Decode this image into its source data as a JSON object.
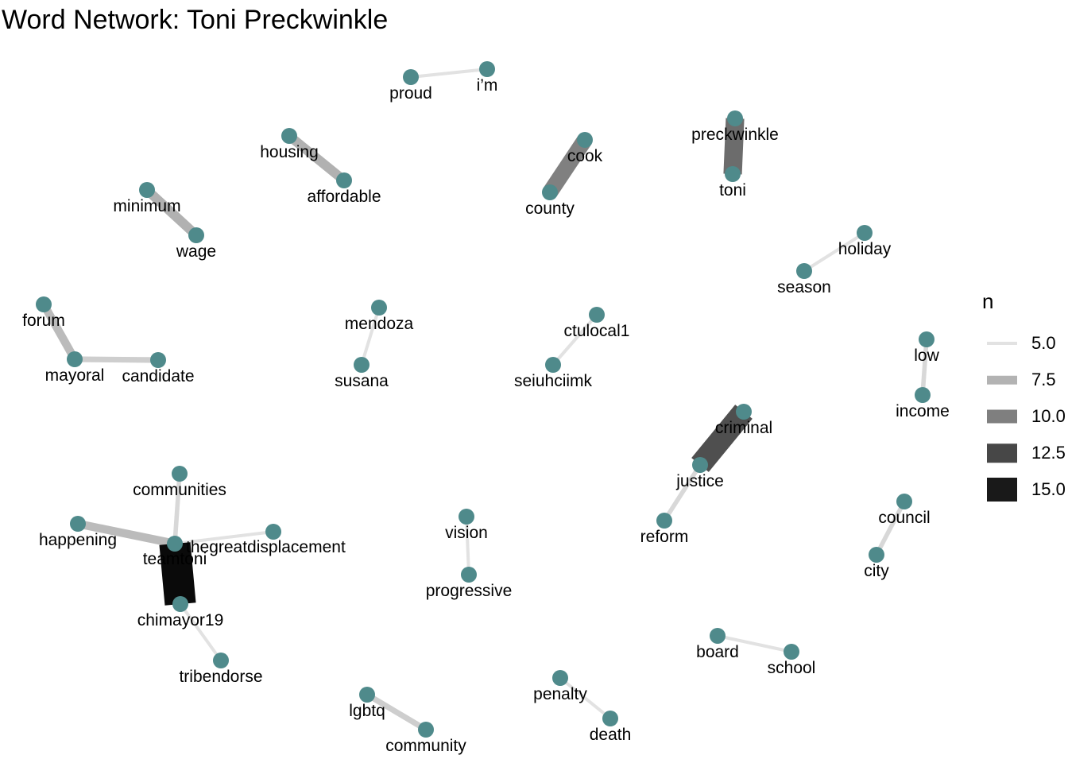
{
  "title": "Word Network: Toni Preckwinkle",
  "colors": {
    "node": "#4f8a8b"
  },
  "legend": {
    "title": "n",
    "items": [
      {
        "label": "5.0",
        "n": 5.0,
        "color": "#e2e2e2"
      },
      {
        "label": "7.5",
        "n": 7.5,
        "color": "#b3b3b3"
      },
      {
        "label": "10.0",
        "n": 10.0,
        "color": "#7f7f7f"
      },
      {
        "label": "12.5",
        "n": 12.5,
        "color": "#474747"
      },
      {
        "label": "15.0",
        "n": 15.0,
        "color": "#191919"
      }
    ]
  },
  "nodes": [
    {
      "id": "proud",
      "label": "proud"
    },
    {
      "id": "im",
      "label": "i’m"
    },
    {
      "id": "housing",
      "label": "housing"
    },
    {
      "id": "affordable",
      "label": "affordable"
    },
    {
      "id": "cook",
      "label": "cook"
    },
    {
      "id": "county",
      "label": "county"
    },
    {
      "id": "preckwinkle",
      "label": "preckwinkle"
    },
    {
      "id": "toni",
      "label": "toni"
    },
    {
      "id": "minimum",
      "label": "minimum"
    },
    {
      "id": "wage",
      "label": "wage"
    },
    {
      "id": "holiday",
      "label": "holiday"
    },
    {
      "id": "season",
      "label": "season"
    },
    {
      "id": "forum",
      "label": "forum"
    },
    {
      "id": "mayoral",
      "label": "mayoral"
    },
    {
      "id": "candidate",
      "label": "candidate"
    },
    {
      "id": "mendoza",
      "label": "mendoza"
    },
    {
      "id": "susana",
      "label": "susana"
    },
    {
      "id": "ctulocal1",
      "label": "ctulocal1"
    },
    {
      "id": "seiuhciimk",
      "label": "seiuhciimk"
    },
    {
      "id": "low",
      "label": "low"
    },
    {
      "id": "income",
      "label": "income"
    },
    {
      "id": "criminal",
      "label": "criminal"
    },
    {
      "id": "justice",
      "label": "justice"
    },
    {
      "id": "reform",
      "label": "reform"
    },
    {
      "id": "communities",
      "label": "communities"
    },
    {
      "id": "happening",
      "label": "happening"
    },
    {
      "id": "teamtoni",
      "label": "teamtoni"
    },
    {
      "id": "thegreatdisplacement",
      "label": "thegreatdisplacement"
    },
    {
      "id": "chimayor19",
      "label": "chimayor19"
    },
    {
      "id": "tribendorse",
      "label": "tribendorse"
    },
    {
      "id": "vision",
      "label": "vision"
    },
    {
      "id": "progressive",
      "label": "progressive"
    },
    {
      "id": "council",
      "label": "council"
    },
    {
      "id": "city",
      "label": "city"
    },
    {
      "id": "board",
      "label": "board"
    },
    {
      "id": "school",
      "label": "school"
    },
    {
      "id": "lgbtq",
      "label": "lgbtq"
    },
    {
      "id": "community",
      "label": "community"
    },
    {
      "id": "penalty",
      "label": "penalty"
    },
    {
      "id": "death",
      "label": "death"
    }
  ],
  "edges": [
    {
      "from": "proud",
      "to": "im",
      "n": 5
    },
    {
      "from": "housing",
      "to": "affordable",
      "n": 7.5
    },
    {
      "from": "cook",
      "to": "county",
      "n": 10
    },
    {
      "from": "toni",
      "to": "preckwinkle",
      "n": 11
    },
    {
      "from": "minimum",
      "to": "wage",
      "n": 7.5
    },
    {
      "from": "holiday",
      "to": "season",
      "n": 5
    },
    {
      "from": "forum",
      "to": "mayoral",
      "n": 7
    },
    {
      "from": "mayoral",
      "to": "candidate",
      "n": 6
    },
    {
      "from": "mendoza",
      "to": "susana",
      "n": 5
    },
    {
      "from": "ctulocal1",
      "to": "seiuhciimk",
      "n": 5
    },
    {
      "from": "low",
      "to": "income",
      "n": 5.5
    },
    {
      "from": "criminal",
      "to": "justice",
      "n": 12.5
    },
    {
      "from": "justice",
      "to": "reform",
      "n": 5.5
    },
    {
      "from": "teamtoni",
      "to": "communities",
      "n": 5.5
    },
    {
      "from": "happening",
      "to": "teamtoni",
      "n": 7
    },
    {
      "from": "teamtoni",
      "to": "thegreatdisplacement",
      "n": 5
    },
    {
      "from": "teamtoni",
      "to": "chimayor19",
      "n": 16
    },
    {
      "from": "chimayor19",
      "to": "tribendorse",
      "n": 5
    },
    {
      "from": "vision",
      "to": "progressive",
      "n": 5
    },
    {
      "from": "council",
      "to": "city",
      "n": 5.5
    },
    {
      "from": "board",
      "to": "school",
      "n": 5
    },
    {
      "from": "lgbtq",
      "to": "community",
      "n": 6
    },
    {
      "from": "penalty",
      "to": "death",
      "n": 5
    }
  ]
}
